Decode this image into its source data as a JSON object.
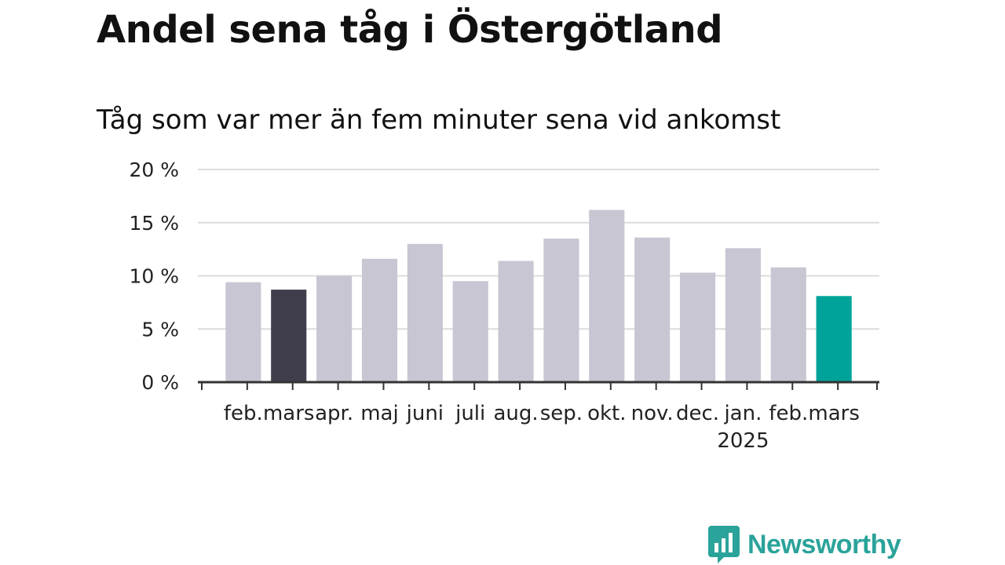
{
  "title": "Andel sena tåg i Östergötland",
  "subtitle": "Tåg som var mer än fem minuter sena vid ankomst",
  "brand": {
    "name": "Newsworthy",
    "icon": "newsworthy-logo-icon",
    "color": "#2aa39a"
  },
  "chart_data": {
    "type": "bar",
    "categories": [
      "feb.",
      "mars",
      "apr.",
      "maj",
      "juni",
      "juli",
      "aug.",
      "sep.",
      "okt.",
      "nov.",
      "dec.",
      "jan.",
      "feb.",
      "mars"
    ],
    "year_labels": {
      "11": "2025"
    },
    "values": [
      9.4,
      8.7,
      10.0,
      11.6,
      13.0,
      9.5,
      11.4,
      13.5,
      16.2,
      13.6,
      10.3,
      12.6,
      10.8,
      8.1
    ],
    "y_ticks": [
      0,
      5,
      10,
      15,
      20
    ],
    "y_tick_labels": [
      "0 %",
      "5 %",
      "10 %",
      "15 %",
      "20 %"
    ],
    "ylim": [
      0,
      20
    ],
    "xlabel": "",
    "ylabel": "",
    "grid": true,
    "colors": {
      "default": "#c8c6d2",
      "highlight_previous": "#403e4d",
      "highlight_current": "#00a39a",
      "grid": "#dcdcdc",
      "axis": "#333333"
    },
    "highlight_indices": {
      "1": "highlight_previous",
      "13": "highlight_current"
    }
  }
}
